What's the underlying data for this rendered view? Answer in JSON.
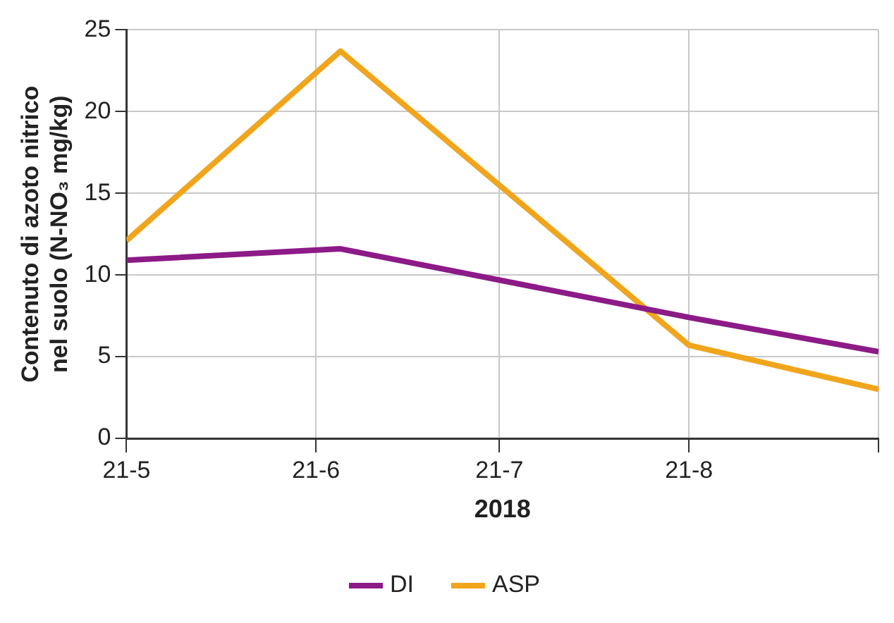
{
  "chart_data": {
    "type": "line",
    "xlabel": "2018",
    "ylabel": "Contenuto di azoto nitrico nel suolo (N-NO₃ mg/kg)",
    "x": [
      "--05-21",
      "--06-25",
      "--08-21",
      "--09-21"
    ],
    "xlim": [
      "--05-21",
      "--09-21"
    ],
    "xticks": [
      {
        "value": "--05-21",
        "label": "21-5"
      },
      {
        "value": "--06-21",
        "label": "21-6"
      },
      {
        "value": "--07-21",
        "label": "21-7"
      },
      {
        "value": "--08-21",
        "label": "21-8"
      },
      {
        "value": "--09-21",
        "label": null
      }
    ],
    "ylim": [
      0,
      25
    ],
    "yticks": [
      0,
      5,
      10,
      15,
      20,
      25
    ],
    "series": [
      {
        "name": "DI",
        "color": "#8c1a87",
        "values": [
          10.9,
          11.6,
          7.4,
          5.3
        ]
      },
      {
        "name": "ASP",
        "color": "#f0a51c",
        "values": [
          12.1,
          23.7,
          5.7,
          3.0
        ]
      }
    ],
    "grid": true,
    "legend": "bottom",
    "marker": "none",
    "line_style": "solid"
  }
}
